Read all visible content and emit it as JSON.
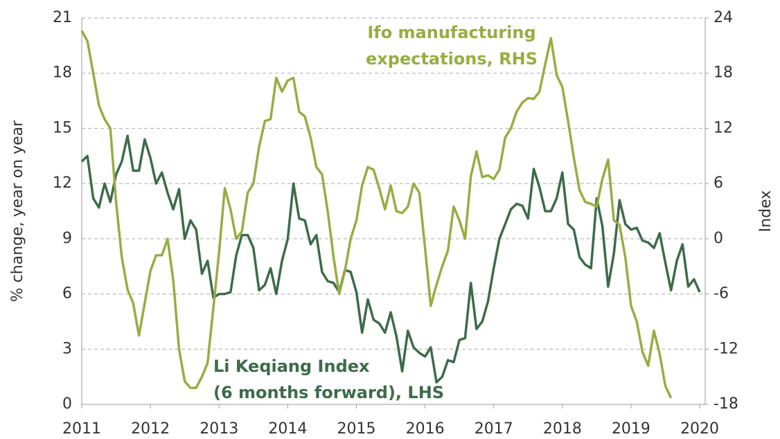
{
  "chart_data": {
    "type": "line",
    "ylabel": "% change, year on year",
    "y2label": "Index",
    "xlim": [
      2011,
      2020.08
    ],
    "xticks": [
      2011,
      2012,
      2013,
      2014,
      2015,
      2016,
      2017,
      2018,
      2019,
      2020
    ],
    "ylim": [
      0,
      21
    ],
    "yticks": [
      0,
      3,
      6,
      9,
      12,
      15,
      18,
      21
    ],
    "y2lim": [
      -18,
      24
    ],
    "y2ticks": [
      -18,
      -12,
      -6,
      0,
      6,
      12,
      18,
      24
    ],
    "grid": true,
    "annotations": [
      {
        "lines": [
          "Ifo manufacturing",
          "expectations, RHS"
        ],
        "color": "#97ad42"
      },
      {
        "lines": [
          "Li Keqiang Index",
          "(6 months forward), LHS"
        ],
        "color": "#3d6b4a"
      }
    ],
    "series": [
      {
        "color": "#3d6b4a",
        "axis": "y",
        "x": [
          2011.0,
          2011.083,
          2011.167,
          2011.25,
          2011.333,
          2011.417,
          2011.5,
          2011.583,
          2011.667,
          2011.75,
          2011.833,
          2011.917,
          2012.0,
          2012.083,
          2012.167,
          2012.25,
          2012.333,
          2012.417,
          2012.5,
          2012.583,
          2012.667,
          2012.75,
          2012.833,
          2012.917,
          2013.0,
          2013.083,
          2013.167,
          2013.25,
          2013.333,
          2013.417,
          2013.5,
          2013.583,
          2013.667,
          2013.75,
          2013.833,
          2013.917,
          2014.0,
          2014.083,
          2014.167,
          2014.25,
          2014.333,
          2014.417,
          2014.5,
          2014.583,
          2014.667,
          2014.75,
          2014.833,
          2014.917,
          2015.0,
          2015.083,
          2015.167,
          2015.25,
          2015.333,
          2015.417,
          2015.5,
          2015.583,
          2015.667,
          2015.75,
          2015.833,
          2015.917,
          2016.0,
          2016.083,
          2016.167,
          2016.25,
          2016.333,
          2016.417,
          2016.5,
          2016.583,
          2016.667,
          2016.75,
          2016.833,
          2016.917,
          2017.0,
          2017.083,
          2017.167,
          2017.25,
          2017.333,
          2017.417,
          2017.5,
          2017.583,
          2017.667,
          2017.75,
          2017.833,
          2017.917,
          2018.0,
          2018.083,
          2018.167,
          2018.25,
          2018.333,
          2018.417,
          2018.5,
          2018.583,
          2018.667,
          2018.75,
          2018.833,
          2018.917,
          2019.0,
          2019.083,
          2019.167,
          2019.25,
          2019.333,
          2019.417,
          2019.5,
          2019.583,
          2019.667,
          2019.75,
          2019.833,
          2019.917,
          2020.0
        ],
        "values": [
          13.2,
          13.5,
          11.2,
          10.7,
          12.0,
          11.0,
          12.5,
          13.2,
          14.6,
          12.7,
          12.7,
          14.4,
          13.4,
          12.0,
          12.6,
          11.5,
          10.6,
          11.7,
          9.0,
          10.0,
          9.5,
          7.1,
          7.8,
          5.8,
          6.0,
          6.0,
          6.1,
          8.1,
          9.2,
          9.2,
          8.5,
          6.2,
          6.5,
          7.4,
          6.0,
          7.8,
          9.0,
          12.0,
          10.1,
          10.0,
          8.7,
          9.2,
          7.2,
          6.7,
          6.6,
          6.1,
          7.3,
          7.2,
          6.1,
          3.9,
          5.7,
          4.6,
          4.4,
          3.9,
          5.0,
          3.7,
          1.8,
          4.0,
          3.1,
          2.8,
          2.6,
          3.1,
          1.2,
          1.5,
          2.4,
          2.3,
          3.5,
          3.6,
          6.6,
          4.1,
          4.5,
          5.6,
          7.4,
          9.0,
          9.8,
          10.6,
          10.9,
          10.8,
          10.1,
          12.8,
          11.8,
          10.5,
          10.5,
          11.2,
          12.6,
          9.8,
          9.5,
          8.0,
          7.6,
          7.4,
          11.2,
          9.7,
          6.4,
          8.2,
          11.1,
          9.8,
          9.5,
          9.6,
          8.9,
          8.8,
          8.5,
          9.3,
          7.7,
          6.2,
          7.8,
          8.7,
          6.4,
          6.8,
          6.1
        ]
      },
      {
        "color": "#97ad42",
        "axis": "y2",
        "x": [
          2011.0,
          2011.083,
          2011.167,
          2011.25,
          2011.333,
          2011.417,
          2011.5,
          2011.583,
          2011.667,
          2011.75,
          2011.833,
          2011.917,
          2012.0,
          2012.083,
          2012.167,
          2012.25,
          2012.333,
          2012.417,
          2012.5,
          2012.583,
          2012.667,
          2012.75,
          2012.833,
          2012.917,
          2013.0,
          2013.083,
          2013.167,
          2013.25,
          2013.333,
          2013.417,
          2013.5,
          2013.583,
          2013.667,
          2013.75,
          2013.833,
          2013.917,
          2014.0,
          2014.083,
          2014.167,
          2014.25,
          2014.333,
          2014.417,
          2014.5,
          2014.583,
          2014.667,
          2014.75,
          2014.833,
          2014.917,
          2015.0,
          2015.083,
          2015.167,
          2015.25,
          2015.333,
          2015.417,
          2015.5,
          2015.583,
          2015.667,
          2015.75,
          2015.833,
          2015.917,
          2016.0,
          2016.083,
          2016.167,
          2016.25,
          2016.333,
          2016.417,
          2016.5,
          2016.583,
          2016.667,
          2016.75,
          2016.833,
          2016.917,
          2017.0,
          2017.083,
          2017.167,
          2017.25,
          2017.333,
          2017.417,
          2017.5,
          2017.583,
          2017.667,
          2017.75,
          2017.833,
          2017.917,
          2018.0,
          2018.083,
          2018.167,
          2018.25,
          2018.333,
          2018.417,
          2018.5,
          2018.583,
          2018.667,
          2018.75,
          2018.833,
          2018.917,
          2019.0,
          2019.083,
          2019.167,
          2019.25,
          2019.333,
          2019.417,
          2019.5,
          2019.583
        ],
        "values": [
          22.6,
          21.5,
          18.0,
          14.5,
          13.0,
          12.0,
          4.0,
          -2.0,
          -5.5,
          -7.0,
          -10.5,
          -7.0,
          -3.5,
          -1.8,
          -1.8,
          0.0,
          -4.5,
          -12.0,
          -15.5,
          -16.2,
          -16.2,
          -15.0,
          -13.5,
          -7.5,
          -1.5,
          5.5,
          3.2,
          0.0,
          0.8,
          5.0,
          6.0,
          10.0,
          12.8,
          13.0,
          17.5,
          16.0,
          17.2,
          17.5,
          13.8,
          13.3,
          11.0,
          7.8,
          7.0,
          3.0,
          -2.0,
          -6.0,
          -3.5,
          0.0,
          2.0,
          5.8,
          7.8,
          7.5,
          5.5,
          3.2,
          5.8,
          3.0,
          2.8,
          3.5,
          6.0,
          5.0,
          -1.0,
          -7.3,
          -5.0,
          -3.0,
          -1.3,
          3.5,
          2.0,
          0.0,
          6.8,
          9.5,
          6.7,
          6.9,
          6.5,
          7.5,
          11.0,
          12.0,
          13.8,
          14.8,
          15.3,
          15.2,
          16.0,
          19.0,
          21.8,
          17.8,
          16.5,
          12.8,
          8.8,
          5.3,
          4.0,
          3.8,
          3.5,
          6.5,
          8.6,
          2.0,
          1.5,
          -2.0,
          -7.3,
          -9.0,
          -12.3,
          -13.8,
          -10.0,
          -12.5,
          -16.0,
          -17.3
        ]
      }
    ]
  }
}
